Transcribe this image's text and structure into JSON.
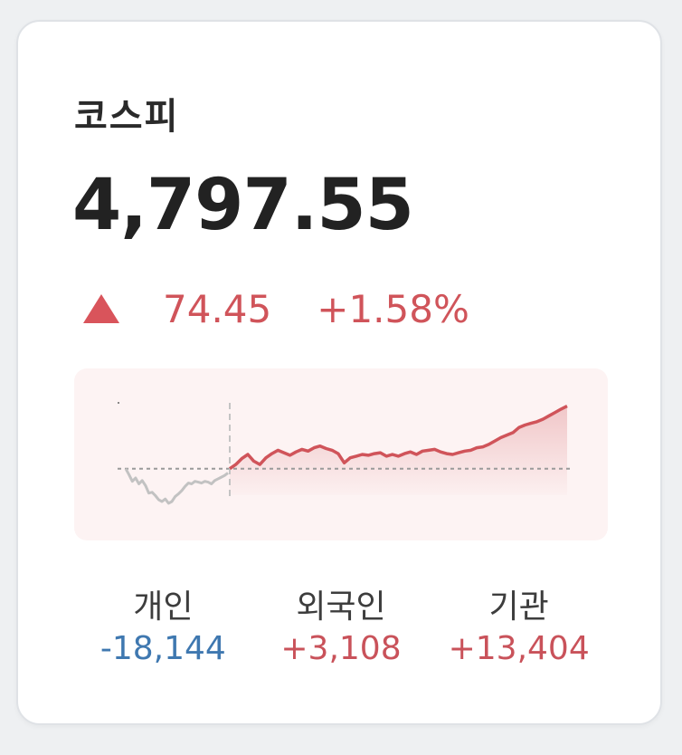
{
  "index": {
    "name": "코스피",
    "price": "4,797.55",
    "change_abs": "74.45",
    "change_pct": "+1.58%",
    "direction": "up",
    "colors": {
      "up": "#d0545a",
      "down": "#3f78b0",
      "pre_market": "#c2c2c2"
    }
  },
  "investors": [
    {
      "label": "개인",
      "value": "-18,144",
      "sign": "negative"
    },
    {
      "label": "외국인",
      "value": "+3,108",
      "sign": "positive"
    },
    {
      "label": "기관",
      "value": "+13,404",
      "sign": "positive"
    }
  ],
  "chart_data": {
    "type": "line",
    "baseline": 4723.1,
    "pre_open": [
      4723.1,
      4716,
      4708,
      4712,
      4705,
      4709,
      4703,
      4694,
      4695,
      4691,
      4686,
      4684,
      4687,
      4682,
      4684,
      4690,
      4693,
      4697,
      4702,
      4706,
      4705,
      4708,
      4707,
      4706,
      4708,
      4707,
      4705,
      4709,
      4711,
      4713,
      4715,
      4718
    ],
    "session": [
      4723.1,
      4728,
      4735,
      4740,
      4732,
      4728,
      4736,
      4741,
      4745,
      4742,
      4739,
      4743,
      4746,
      4744,
      4748,
      4750,
      4747,
      4745,
      4741,
      4730,
      4736,
      4738,
      4740,
      4739,
      4741,
      4742,
      4738,
      4740,
      4738,
      4741,
      4743,
      4740,
      4744,
      4745,
      4746,
      4743,
      4741,
      4740,
      4742,
      4744,
      4745,
      4748,
      4749,
      4752,
      4756,
      4760,
      4763,
      4766,
      4772,
      4775,
      4777,
      4779,
      4782,
      4786,
      4790,
      4794,
      4797.55
    ],
    "ylim": [
      4670,
      4810
    ]
  }
}
